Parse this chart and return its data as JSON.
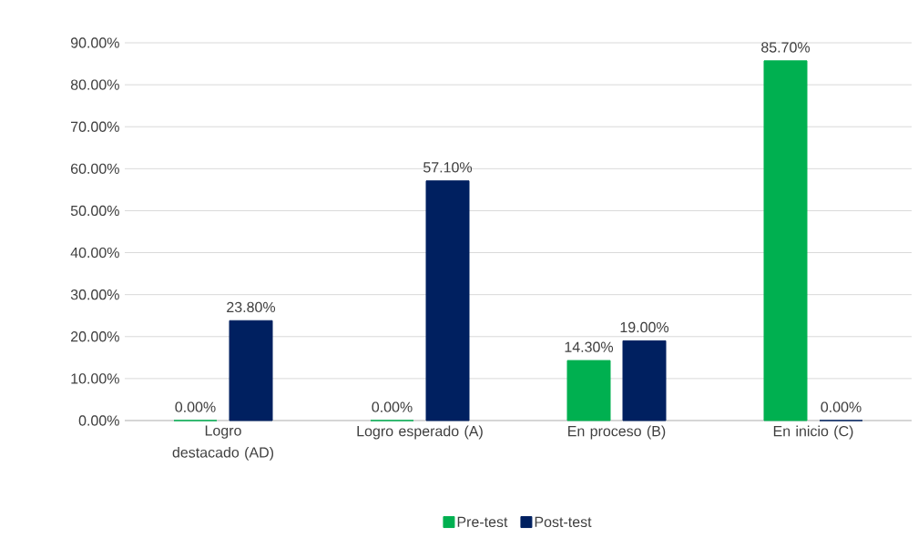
{
  "chart_data": {
    "type": "bar",
    "categories": [
      "Logro destacado (AD)",
      "Logro esperado (A)",
      "En proceso (B)",
      "En inicio (C)"
    ],
    "series": [
      {
        "name": "Pre-test",
        "color": "#00b050",
        "values": [
          0,
          0,
          14.3,
          85.7
        ],
        "value_labels": [
          "0.00%",
          "0.00%",
          "14.30%",
          "85.70%"
        ]
      },
      {
        "name": "Post-test",
        "color": "#002060",
        "values": [
          23.8,
          57.1,
          19.0,
          0
        ],
        "value_labels": [
          "23.80%",
          "57.10%",
          "19.00%",
          "0.00%"
        ]
      }
    ],
    "ylim": [
      0,
      90
    ],
    "yticks": [
      {
        "value": 0,
        "label": "0.00%"
      },
      {
        "value": 10,
        "label": "10.00%"
      },
      {
        "value": 20,
        "label": "20.00%"
      },
      {
        "value": 30,
        "label": "30.00%"
      },
      {
        "value": 40,
        "label": "40.00%"
      },
      {
        "value": 50,
        "label": "50.00%"
      },
      {
        "value": 60,
        "label": "60.00%"
      },
      {
        "value": 70,
        "label": "70.00%"
      },
      {
        "value": 80,
        "label": "80.00%"
      },
      {
        "value": 90,
        "label": "90.00%"
      }
    ],
    "grid": "y",
    "legend": "bottom"
  }
}
